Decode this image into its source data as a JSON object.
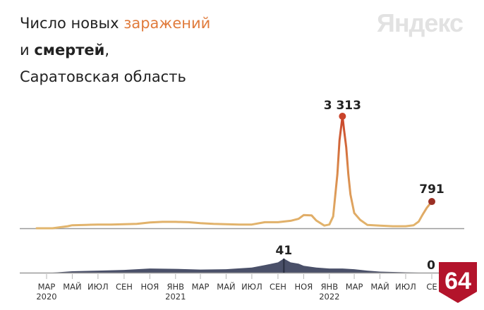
{
  "title": {
    "line1_prefix": "Число новых ",
    "line1_highlight": "заражений",
    "line2_prefix": "и ",
    "line2_bold": "смертей",
    "line2_suffix": ",",
    "line3": "Саратовская область"
  },
  "brand": {
    "logo": "Яндекс",
    "badge": "64"
  },
  "colors": {
    "infections_line": "#e2b66e",
    "peak_color": "#c9432a",
    "end_marker": "#9a2f24",
    "deaths_fill": "#4a5069",
    "badge_red": "#b3142b",
    "baseline": "#9a9a9a"
  },
  "chart_data": [
    {
      "type": "line",
      "x": [
        "2020-03-15",
        "2020-04-01",
        "2020-04-20",
        "2020-05-01",
        "2020-06-01",
        "2020-07-01",
        "2020-08-01",
        "2020-09-01",
        "2020-10-01",
        "2020-11-01",
        "2020-12-01",
        "2021-01-01",
        "2021-02-01",
        "2021-03-01",
        "2021-04-01",
        "2021-05-01",
        "2021-06-01",
        "2021-07-01",
        "2021-08-01",
        "2021-09-01",
        "2021-10-01",
        "2021-10-20",
        "2021-11-01",
        "2021-11-20",
        "2021-12-01",
        "2021-12-20",
        "2022-01-01",
        "2022-01-10",
        "2022-01-20",
        "2022-01-25",
        "2022-02-01",
        "2022-02-05",
        "2022-02-10",
        "2022-02-15",
        "2022-02-20",
        "2022-03-01",
        "2022-03-15",
        "2022-04-01",
        "2022-05-01",
        "2022-06-01",
        "2022-07-01",
        "2022-07-20",
        "2022-08-01",
        "2022-08-10",
        "2022-08-20",
        "2022-09-01"
      ],
      "values": [
        0,
        30,
        60,
        90,
        100,
        110,
        110,
        120,
        130,
        170,
        190,
        190,
        180,
        150,
        130,
        120,
        110,
        110,
        180,
        180,
        220,
        280,
        390,
        380,
        230,
        80,
        110,
        350,
        1600,
        2600,
        3313,
        2900,
        2400,
        1600,
        1000,
        450,
        250,
        100,
        80,
        60,
        60,
        90,
        200,
        400,
        600,
        791
      ],
      "series_name": "",
      "peak_label": "3 313",
      "end_label": "791"
    },
    {
      "type": "area",
      "x": [
        "2020-03-15",
        "2020-05-01",
        "2020-07-01",
        "2020-09-01",
        "2020-11-01",
        "2021-01-01",
        "2021-03-01",
        "2021-05-01",
        "2021-07-01",
        "2021-08-01",
        "2021-09-01",
        "2021-09-15",
        "2021-10-01",
        "2021-10-20",
        "2021-11-01",
        "2021-12-01",
        "2022-01-01",
        "2022-02-01",
        "2022-03-01",
        "2022-04-01",
        "2022-05-01",
        "2022-06-01",
        "2022-07-01",
        "2022-08-01",
        "2022-09-01"
      ],
      "values": [
        0,
        4,
        6,
        8,
        12,
        11,
        9,
        10,
        15,
        22,
        30,
        41,
        30,
        26,
        20,
        15,
        12,
        12,
        10,
        6,
        3,
        2,
        1,
        0,
        0
      ],
      "series_name": "",
      "peak_label": "41",
      "end_label": "0"
    }
  ],
  "xaxis": {
    "ticks": [
      {
        "date": "2020-03-01",
        "label": "МАР",
        "year": "2020"
      },
      {
        "date": "2020-05-01",
        "label": "МАЙ",
        "year": ""
      },
      {
        "date": "2020-07-01",
        "label": "ИЮЛ",
        "year": ""
      },
      {
        "date": "2020-09-01",
        "label": "СЕН",
        "year": ""
      },
      {
        "date": "2020-11-01",
        "label": "НОЯ",
        "year": ""
      },
      {
        "date": "2021-01-01",
        "label": "ЯНВ",
        "year": "2021"
      },
      {
        "date": "2021-03-01",
        "label": "МАР",
        "year": ""
      },
      {
        "date": "2021-05-01",
        "label": "МАЙ",
        "year": ""
      },
      {
        "date": "2021-07-01",
        "label": "ИЮЛ",
        "year": ""
      },
      {
        "date": "2021-09-01",
        "label": "СЕН",
        "year": ""
      },
      {
        "date": "2021-11-01",
        "label": "НОЯ",
        "year": ""
      },
      {
        "date": "2022-01-01",
        "label": "ЯНВ",
        "year": "2022"
      },
      {
        "date": "2022-03-01",
        "label": "МАР",
        "year": ""
      },
      {
        "date": "2022-05-01",
        "label": "МАЙ",
        "year": ""
      },
      {
        "date": "2022-07-01",
        "label": "ИЮЛ",
        "year": ""
      },
      {
        "date": "2022-09-01",
        "label": "СЕ",
        "year": ""
      }
    ]
  }
}
